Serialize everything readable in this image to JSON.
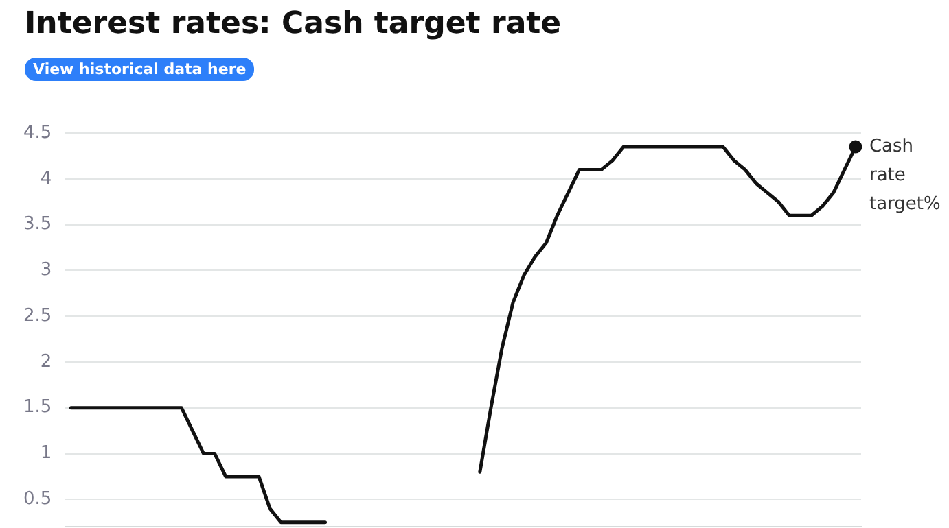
{
  "chart_data": {
    "type": "line",
    "title": "Interest rates: Cash target rate",
    "annotations": [
      "View historical data here"
    ],
    "categories": [
      null,
      null,
      null,
      null,
      null,
      null,
      null,
      null,
      null,
      null,
      null,
      null,
      null,
      null,
      null,
      null,
      null,
      null,
      null,
      null,
      null,
      null,
      null,
      null,
      null,
      null,
      null,
      null,
      null,
      null,
      null,
      null,
      null,
      null,
      null,
      null,
      null,
      null,
      null,
      null,
      null,
      null,
      null,
      null,
      null,
      null,
      null,
      null,
      null,
      null,
      null,
      null,
      null,
      null,
      null,
      null,
      null,
      null,
      null,
      null,
      null,
      null,
      null,
      null,
      null,
      null,
      null,
      null,
      null,
      null,
      null,
      null
    ],
    "series": [
      {
        "name": "Cash rate target%",
        "color": "#111111",
        "values": [
          1.5,
          1.5,
          1.5,
          1.5,
          1.5,
          1.5,
          1.5,
          1.5,
          1.5,
          1.5,
          1.5,
          1.25,
          1.0,
          1.0,
          0.75,
          0.75,
          0.75,
          0.75,
          0.4,
          0.25,
          0.25,
          0.25,
          0.25,
          0.25,
          null,
          null,
          null,
          null,
          null,
          null,
          null,
          null,
          null,
          null,
          null,
          null,
          null,
          0.8,
          1.5,
          2.15,
          2.65,
          2.95,
          3.15,
          3.3,
          3.6,
          3.85,
          4.1,
          4.1,
          4.1,
          4.2,
          4.35,
          4.35,
          4.35,
          4.35,
          4.35,
          4.35,
          4.35,
          4.35,
          4.35,
          4.35,
          4.2,
          4.1,
          3.95,
          3.85,
          3.75,
          3.6,
          3.6,
          3.6,
          3.7,
          3.85,
          4.1,
          4.35
        ]
      }
    ],
    "ylim": [
      0.2,
      4.5
    ],
    "yticks": [
      0.5,
      1,
      1.5,
      2,
      2.5,
      3,
      3.5,
      4,
      4.5
    ],
    "grid": "y",
    "legend": "right",
    "line_style": "solid"
  }
}
